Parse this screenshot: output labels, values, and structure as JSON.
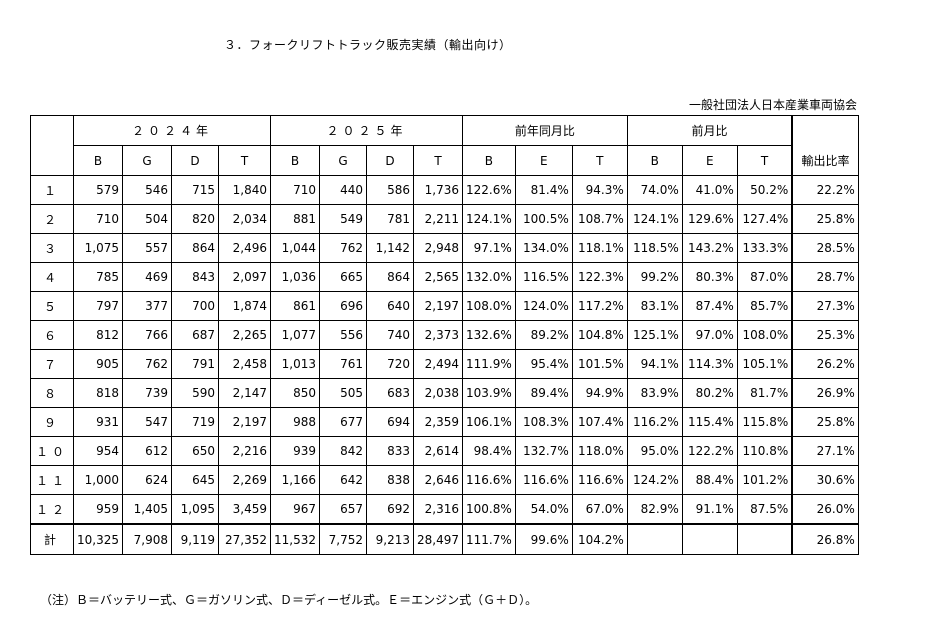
{
  "title": "３．フォークリフトトラック販売実績（輸出向け）",
  "organization": "一般社団法人日本産業車両協会",
  "headers": {
    "group_2024": "２０２４年",
    "group_2025": "２０２５年",
    "group_yoy": "前年同月比",
    "group_mom": "前月比",
    "export_ratio": "輸出比率",
    "sub_2024": [
      "B",
      "G",
      "D",
      "T"
    ],
    "sub_2025": [
      "B",
      "G",
      "D",
      "T"
    ],
    "sub_yoy": [
      "B",
      "E",
      "T"
    ],
    "sub_mom": [
      "B",
      "E",
      "T"
    ]
  },
  "rows": [
    {
      "label": "１",
      "y2024": [
        "579",
        "546",
        "715",
        "1,840"
      ],
      "y2025": [
        "710",
        "440",
        "586",
        "1,736"
      ],
      "yoy": [
        "122.6%",
        "81.4%",
        "94.3%"
      ],
      "mom": [
        "74.0%",
        "41.0%",
        "50.2%"
      ],
      "ratio": "22.2%"
    },
    {
      "label": "２",
      "y2024": [
        "710",
        "504",
        "820",
        "2,034"
      ],
      "y2025": [
        "881",
        "549",
        "781",
        "2,211"
      ],
      "yoy": [
        "124.1%",
        "100.5%",
        "108.7%"
      ],
      "mom": [
        "124.1%",
        "129.6%",
        "127.4%"
      ],
      "ratio": "25.8%"
    },
    {
      "label": "３",
      "y2024": [
        "1,075",
        "557",
        "864",
        "2,496"
      ],
      "y2025": [
        "1,044",
        "762",
        "1,142",
        "2,948"
      ],
      "yoy": [
        "97.1%",
        "134.0%",
        "118.1%"
      ],
      "mom": [
        "118.5%",
        "143.2%",
        "133.3%"
      ],
      "ratio": "28.5%"
    },
    {
      "label": "４",
      "y2024": [
        "785",
        "469",
        "843",
        "2,097"
      ],
      "y2025": [
        "1,036",
        "665",
        "864",
        "2,565"
      ],
      "yoy": [
        "132.0%",
        "116.5%",
        "122.3%"
      ],
      "mom": [
        "99.2%",
        "80.3%",
        "87.0%"
      ],
      "ratio": "28.7%"
    },
    {
      "label": "５",
      "y2024": [
        "797",
        "377",
        "700",
        "1,874"
      ],
      "y2025": [
        "861",
        "696",
        "640",
        "2,197"
      ],
      "yoy": [
        "108.0%",
        "124.0%",
        "117.2%"
      ],
      "mom": [
        "83.1%",
        "87.4%",
        "85.7%"
      ],
      "ratio": "27.3%"
    },
    {
      "label": "６",
      "y2024": [
        "812",
        "766",
        "687",
        "2,265"
      ],
      "y2025": [
        "1,077",
        "556",
        "740",
        "2,373"
      ],
      "yoy": [
        "132.6%",
        "89.2%",
        "104.8%"
      ],
      "mom": [
        "125.1%",
        "97.0%",
        "108.0%"
      ],
      "ratio": "25.3%"
    },
    {
      "label": "７",
      "y2024": [
        "905",
        "762",
        "791",
        "2,458"
      ],
      "y2025": [
        "1,013",
        "761",
        "720",
        "2,494"
      ],
      "yoy": [
        "111.9%",
        "95.4%",
        "101.5%"
      ],
      "mom": [
        "94.1%",
        "114.3%",
        "105.1%"
      ],
      "ratio": "26.2%"
    },
    {
      "label": "８",
      "y2024": [
        "818",
        "739",
        "590",
        "2,147"
      ],
      "y2025": [
        "850",
        "505",
        "683",
        "2,038"
      ],
      "yoy": [
        "103.9%",
        "89.4%",
        "94.9%"
      ],
      "mom": [
        "83.9%",
        "80.2%",
        "81.7%"
      ],
      "ratio": "26.9%"
    },
    {
      "label": "９",
      "y2024": [
        "931",
        "547",
        "719",
        "2,197"
      ],
      "y2025": [
        "988",
        "677",
        "694",
        "2,359"
      ],
      "yoy": [
        "106.1%",
        "108.3%",
        "107.4%"
      ],
      "mom": [
        "116.2%",
        "115.4%",
        "115.8%"
      ],
      "ratio": "25.8%"
    },
    {
      "label": "１０",
      "y2024": [
        "954",
        "612",
        "650",
        "2,216"
      ],
      "y2025": [
        "939",
        "842",
        "833",
        "2,614"
      ],
      "yoy": [
        "98.4%",
        "132.7%",
        "118.0%"
      ],
      "mom": [
        "95.0%",
        "122.2%",
        "110.8%"
      ],
      "ratio": "27.1%"
    },
    {
      "label": "１１",
      "y2024": [
        "1,000",
        "624",
        "645",
        "2,269"
      ],
      "y2025": [
        "1,166",
        "642",
        "838",
        "2,646"
      ],
      "yoy": [
        "116.6%",
        "116.6%",
        "116.6%"
      ],
      "mom": [
        "124.2%",
        "88.4%",
        "101.2%"
      ],
      "ratio": "30.6%"
    },
    {
      "label": "１２",
      "y2024": [
        "959",
        "1,405",
        "1,095",
        "3,459"
      ],
      "y2025": [
        "967",
        "657",
        "692",
        "2,316"
      ],
      "yoy": [
        "100.8%",
        "54.0%",
        "67.0%"
      ],
      "mom": [
        "82.9%",
        "91.1%",
        "87.5%"
      ],
      "ratio": "26.0%"
    }
  ],
  "total": {
    "label": "計",
    "y2024": [
      "10,325",
      "7,908",
      "9,119",
      "27,352"
    ],
    "y2025": [
      "11,532",
      "7,752",
      "9,213",
      "28,497"
    ],
    "yoy": [
      "111.7%",
      "99.6%",
      "104.2%"
    ],
    "mom": [
      "",
      "",
      ""
    ],
    "ratio": "26.8%"
  },
  "note": "（注）Ｂ＝バッテリー式、Ｇ＝ガソリン式、Ｄ＝ディーゼル式。Ｅ＝エンジン式（Ｇ＋Ｄ）。"
}
